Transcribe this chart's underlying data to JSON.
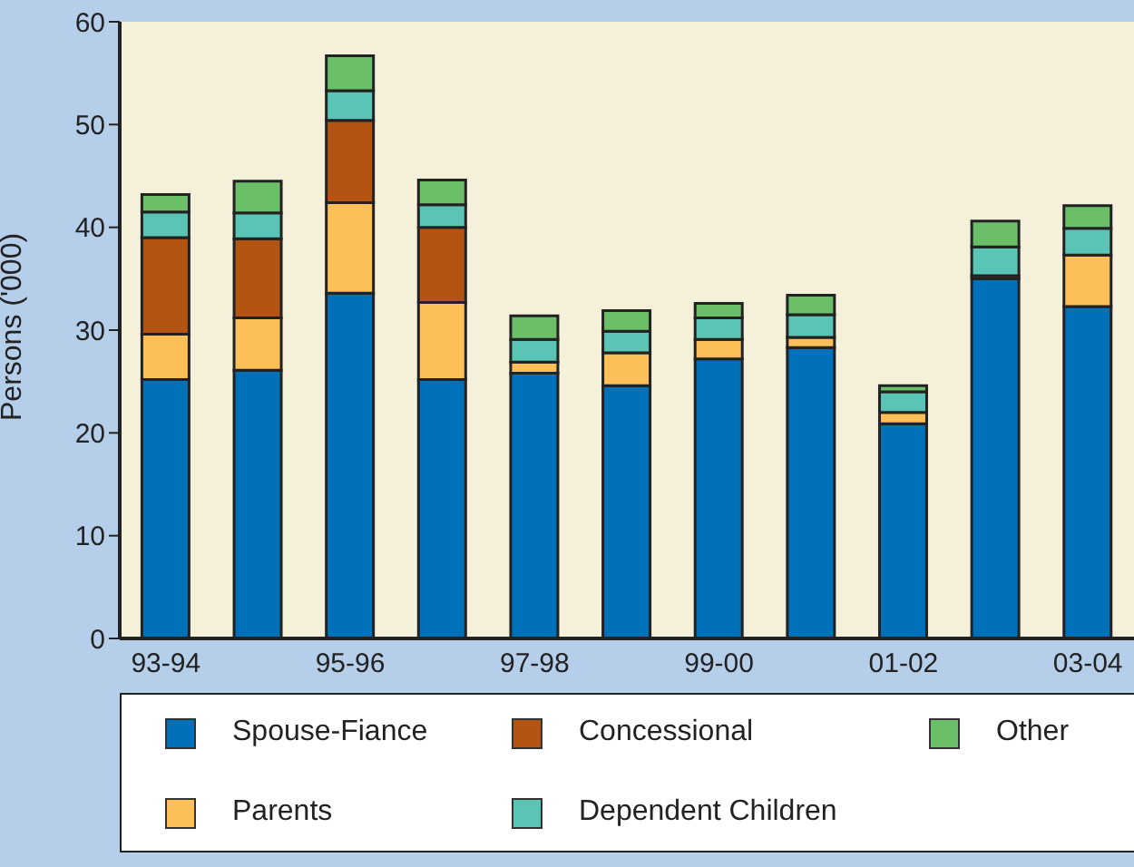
{
  "chart_data": {
    "type": "bar",
    "stacked": true,
    "ylabel": "Persons ('000)",
    "categories": [
      "93-94",
      null,
      "95-96",
      null,
      "97-98",
      null,
      "99-00",
      null,
      "01-02",
      null,
      "03-04"
    ],
    "ylim": [
      0,
      60
    ],
    "yticks": [
      0,
      10,
      20,
      30,
      40,
      50,
      60
    ],
    "grid": false,
    "legend": "bottom",
    "series": [
      {
        "name": "Spouse-Fiance",
        "color": "#0070b8",
        "values": [
          25.2,
          26.1,
          33.6,
          25.2,
          25.8,
          24.6,
          27.2,
          28.3,
          20.9,
          35.0,
          32.3
        ]
      },
      {
        "name": "Parents",
        "color": "#fdbf57",
        "values": [
          4.4,
          5.1,
          8.8,
          7.5,
          1.1,
          3.2,
          1.9,
          1.0,
          1.1,
          null,
          5.0
        ]
      },
      {
        "name": "Concessional",
        "color": "#b35412",
        "values": [
          9.4,
          7.7,
          8.0,
          7.3,
          0,
          0,
          0,
          0,
          0,
          0.3,
          0
        ]
      },
      {
        "name": "Dependent Children",
        "color": "#5bc5b5",
        "values": [
          2.5,
          2.5,
          2.9,
          2.2,
          2.2,
          2.1,
          2.1,
          2.2,
          2.0,
          2.8,
          2.6
        ]
      },
      {
        "name": "Other",
        "color": "#6bbf68",
        "values": [
          1.7,
          3.1,
          3.4,
          2.4,
          2.3,
          2.0,
          1.4,
          1.9,
          0.6,
          2.5,
          2.2
        ]
      }
    ]
  }
}
